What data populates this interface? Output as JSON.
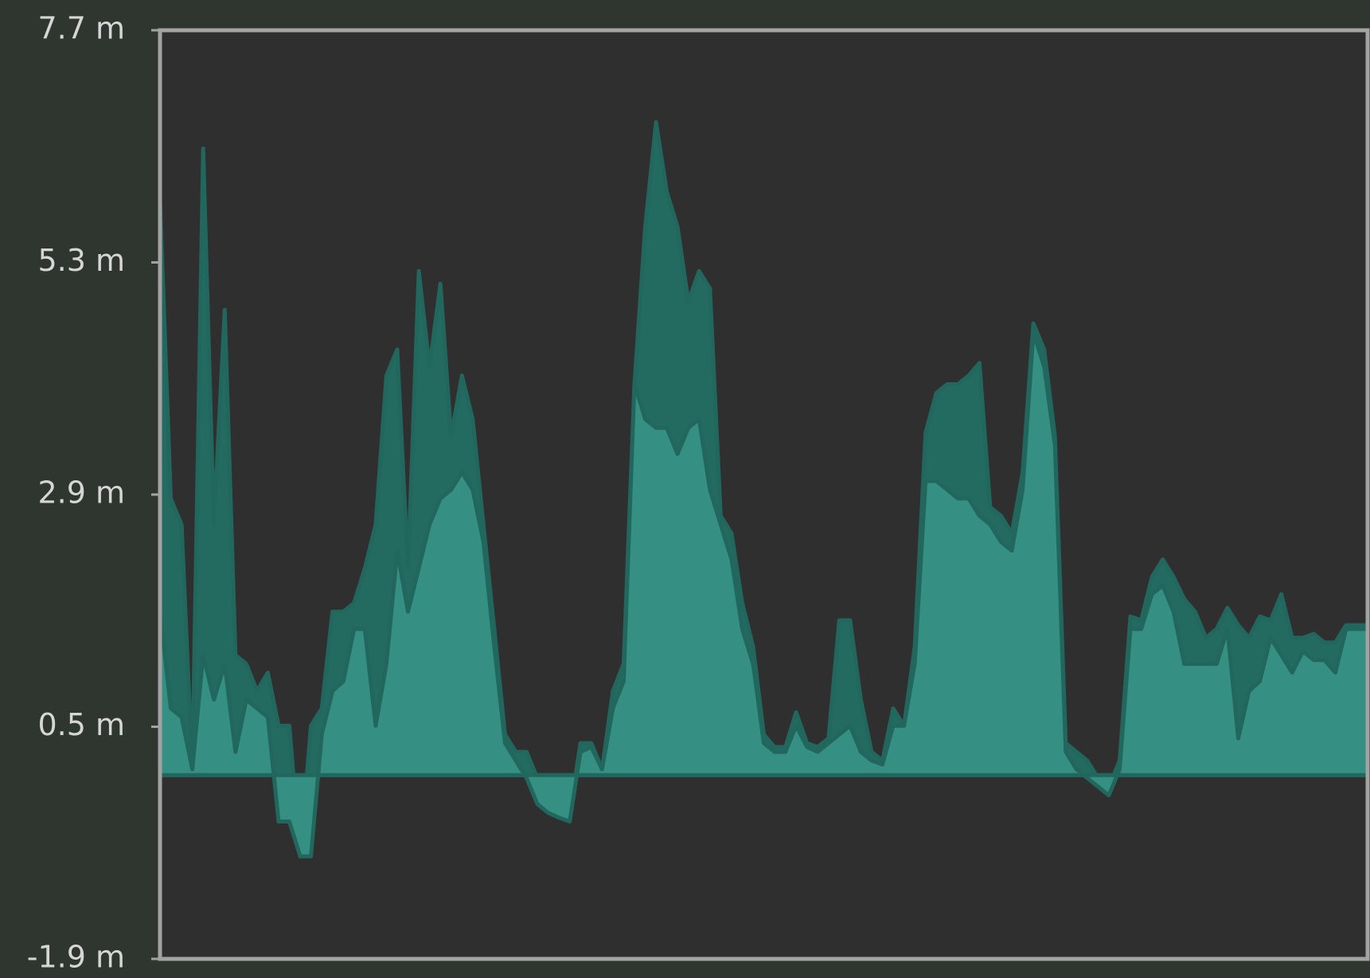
{
  "chart_data": {
    "type": "area",
    "ylim": [
      -1.9,
      7.7
    ],
    "yticks": [
      {
        "value": 7.7,
        "label": "7.7 m"
      },
      {
        "value": 5.3,
        "label": "5.3 m"
      },
      {
        "value": 2.9,
        "label": "2.9 m"
      },
      {
        "value": 0.5,
        "label": "0.5 m"
      },
      {
        "value": -1.9,
        "label": "-1.9 m"
      }
    ],
    "series": [
      {
        "color": "#236b60",
        "values": [
          5.94,
          2.86,
          2.59,
          0.06,
          6.48,
          2.59,
          4.81,
          1.24,
          1.15,
          0.87,
          1.06,
          0.51,
          0.51,
          -0.84,
          0.51,
          0.69,
          1.69,
          1.69,
          1.78,
          2.14,
          2.59,
          4.13,
          4.4,
          2.14,
          5.21,
          4.22,
          5.08,
          3.5,
          4.13,
          3.68,
          2.59,
          1.51,
          0.42,
          0.24,
          0.24,
          -0.03,
          -0.21,
          -0.3,
          -0.39,
          0.33,
          0.33,
          0.06,
          0.87,
          1.15,
          4.04,
          5.67,
          6.75,
          6.03,
          5.67,
          4.9,
          5.21,
          5.03,
          2.68,
          2.5,
          1.78,
          1.33,
          0.42,
          0.29,
          0.29,
          0.65,
          0.33,
          0.29,
          0.38,
          1.6,
          1.6,
          0.78,
          0.24,
          0.15,
          0.69,
          0.51,
          1.33,
          3.54,
          3.95,
          4.04,
          4.04,
          4.13,
          4.26,
          2.77,
          2.68,
          2.5,
          3.13,
          4.67,
          4.4,
          3.5,
          0.33,
          0.24,
          0.15,
          -0.03,
          -0.12,
          0.15,
          1.64,
          1.6,
          2.05,
          2.23,
          2.05,
          1.82,
          1.69,
          1.42,
          1.51,
          1.73,
          1.55,
          1.42,
          1.64,
          1.6,
          1.87,
          1.42,
          1.42,
          1.46,
          1.37,
          1.37,
          1.55,
          1.55,
          1.55
        ]
      },
      {
        "color": "#358f83",
        "values": [
          1.69,
          0.69,
          0.6,
          0.06,
          1.24,
          0.78,
          1.15,
          0.24,
          0.78,
          0.69,
          0.6,
          -0.48,
          -0.48,
          -0.84,
          -0.84,
          0.42,
          0.87,
          0.97,
          1.51,
          1.51,
          0.51,
          1.15,
          2.32,
          1.69,
          2.14,
          2.59,
          2.86,
          2.95,
          3.13,
          2.95,
          2.41,
          1.33,
          0.33,
          0.15,
          -0.03,
          -0.3,
          -0.39,
          -0.44,
          -0.48,
          0.24,
          0.29,
          0.06,
          0.69,
          0.97,
          4.04,
          3.68,
          3.59,
          3.59,
          3.32,
          3.59,
          3.68,
          2.95,
          2.59,
          2.23,
          1.51,
          1.15,
          0.33,
          0.24,
          0.24,
          0.51,
          0.29,
          0.24,
          0.33,
          0.42,
          0.51,
          0.24,
          0.15,
          0.11,
          0.51,
          0.51,
          1.15,
          3.04,
          3.04,
          2.95,
          2.86,
          2.86,
          2.68,
          2.59,
          2.41,
          2.32,
          2.95,
          4.58,
          4.22,
          3.41,
          0.24,
          0.06,
          -0.03,
          -0.12,
          -0.21,
          0.06,
          1.51,
          1.51,
          1.87,
          1.96,
          1.69,
          1.15,
          1.15,
          1.15,
          1.15,
          1.51,
          0.38,
          0.87,
          0.97,
          1.42,
          1.24,
          1.06,
          1.28,
          1.19,
          1.19,
          1.06,
          1.51,
          1.51,
          1.51
        ]
      }
    ]
  }
}
